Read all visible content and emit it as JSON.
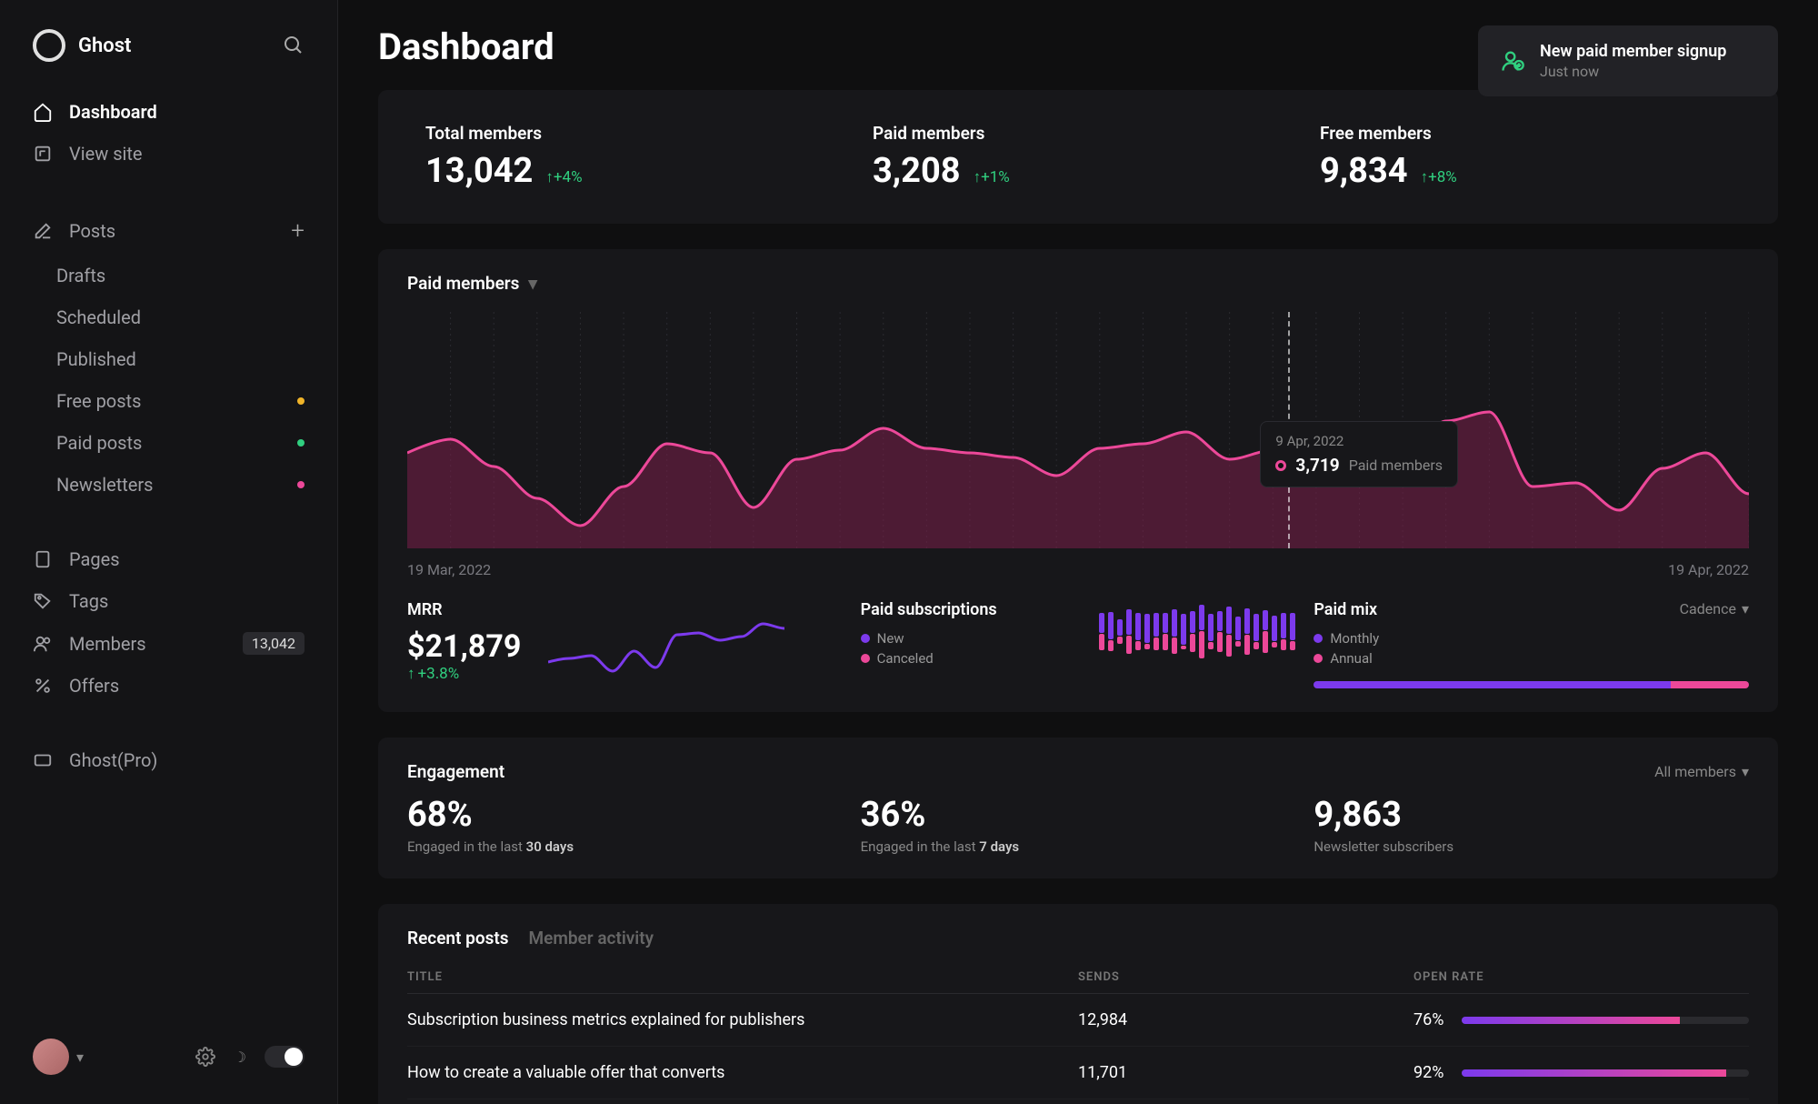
{
  "brand": "Ghost",
  "sidebar": {
    "items": [
      {
        "label": "Dashboard",
        "icon": "home",
        "active": true
      },
      {
        "label": "View site",
        "icon": "external"
      }
    ],
    "posts_label": "Posts",
    "posts_children": [
      {
        "label": "Drafts"
      },
      {
        "label": "Scheduled"
      },
      {
        "label": "Published"
      },
      {
        "label": "Free posts",
        "dot": "#f0b429"
      },
      {
        "label": "Paid posts",
        "dot": "#30cf7f"
      },
      {
        "label": "Newsletters",
        "dot": "#ec4899"
      }
    ],
    "others": [
      {
        "label": "Pages",
        "icon": "pages"
      },
      {
        "label": "Tags",
        "icon": "tag"
      },
      {
        "label": "Members",
        "icon": "members",
        "badge": "13,042"
      },
      {
        "label": "Offers",
        "icon": "percent"
      }
    ],
    "ghostpro": "Ghost(Pro)"
  },
  "page_title": "Dashboard",
  "notification": {
    "title": "New paid member signup",
    "time": "Just now"
  },
  "stats": [
    {
      "label": "Total members",
      "value": "13,042",
      "delta": "+4%"
    },
    {
      "label": "Paid members",
      "value": "3,208",
      "delta": "+1%"
    },
    {
      "label": "Free members",
      "value": "9,834",
      "delta": "+8%"
    }
  ],
  "chart": {
    "title": "Paid members",
    "start_date": "19 Mar, 2022",
    "end_date": "19 Apr, 2022",
    "line_color": "#ec4899",
    "fill_color": "#7a1f4a",
    "points": [
      105,
      120,
      90,
      55,
      25,
      68,
      115,
      105,
      45,
      98,
      108,
      132,
      110,
      105,
      100,
      80,
      110,
      115,
      128,
      98,
      108,
      110,
      92,
      95,
      140,
      150,
      68,
      72,
      42,
      88,
      105,
      60
    ],
    "tooltip": {
      "date": "9 Apr, 2022",
      "value": "3,719",
      "label": "Paid members"
    }
  },
  "mrr": {
    "title": "MRR",
    "value": "$21,879",
    "delta": "+3.8%",
    "line_color": "#7c3aed",
    "points": [
      62,
      58,
      55,
      72,
      50,
      68,
      32,
      30,
      38,
      34,
      20,
      25
    ]
  },
  "subscriptions": {
    "title": "Paid subscriptions",
    "legend": [
      {
        "label": "New",
        "color": "#7c3aed"
      },
      {
        "label": "Canceled",
        "color": "#ec4899"
      }
    ],
    "bars": [
      {
        "up": 22,
        "down": 18
      },
      {
        "up": 30,
        "down": 12
      },
      {
        "up": 18,
        "down": 8
      },
      {
        "up": 28,
        "down": 20
      },
      {
        "up": 30,
        "down": 10
      },
      {
        "up": 32,
        "down": 6
      },
      {
        "up": 26,
        "down": 14
      },
      {
        "up": 22,
        "down": 18
      },
      {
        "up": 30,
        "down": 18
      },
      {
        "up": 34,
        "down": 4
      },
      {
        "up": 24,
        "down": 20
      },
      {
        "up": 28,
        "down": 30
      },
      {
        "up": 30,
        "down": 8
      },
      {
        "up": 22,
        "down": 22
      },
      {
        "up": 30,
        "down": 24
      },
      {
        "up": 26,
        "down": 6
      },
      {
        "up": 28,
        "down": 22
      },
      {
        "up": 30,
        "down": 8
      },
      {
        "up": 22,
        "down": 24
      },
      {
        "up": 28,
        "down": 6
      },
      {
        "up": 28,
        "down": 12
      },
      {
        "up": 30,
        "down": 10
      }
    ]
  },
  "paid_mix": {
    "title": "Paid mix",
    "dropdown": "Cadence",
    "legend": [
      {
        "label": "Monthly",
        "color": "#7c3aed"
      },
      {
        "label": "Annual",
        "color": "#ec4899"
      }
    ],
    "monthly_pct": 82
  },
  "engagement": {
    "title": "Engagement",
    "dropdown": "All members",
    "metrics": [
      {
        "value": "68%",
        "sub_prefix": "Engaged in the last ",
        "sub_bold": "30 days"
      },
      {
        "value": "36%",
        "sub_prefix": "Engaged in the last ",
        "sub_bold": "7 days"
      },
      {
        "value": "9,863",
        "sub_prefix": "Newsletter subscribers",
        "sub_bold": ""
      }
    ]
  },
  "posts_section": {
    "tabs": [
      {
        "label": "Recent posts",
        "active": true
      },
      {
        "label": "Member activity",
        "active": false
      }
    ],
    "columns": [
      "TITLE",
      "SENDS",
      "OPEN RATE"
    ],
    "rows": [
      {
        "title": "Subscription business metrics explained for publishers",
        "sends": "12,984",
        "rate": "76%",
        "rate_val": 76
      },
      {
        "title": "How to create a valuable offer that converts",
        "sends": "11,701",
        "rate": "92%",
        "rate_val": 92
      }
    ]
  }
}
